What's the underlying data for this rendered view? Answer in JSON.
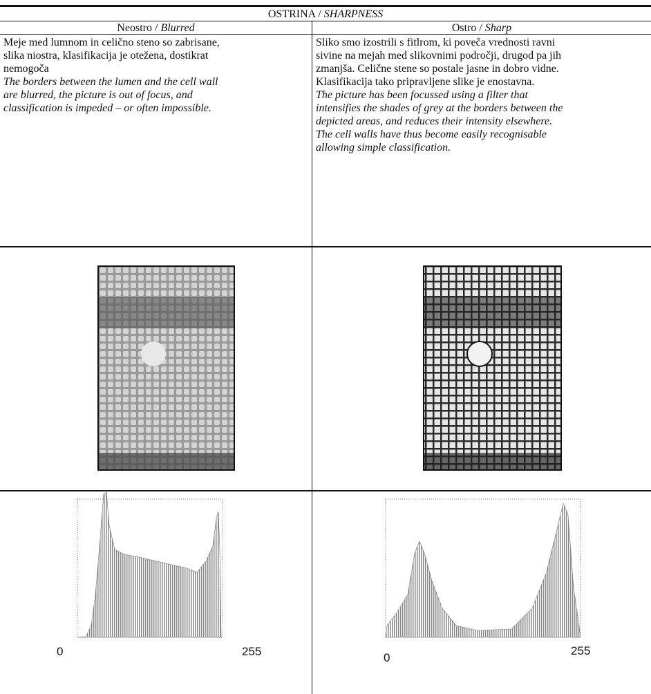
{
  "table": {
    "title": {
      "sl": "OSTRINA /",
      "en": "SHARPNESS"
    },
    "columns": [
      {
        "header": {
          "sl": "Neostro /",
          "en": "Blurred"
        },
        "text_sl": [
          "Meje med lumnom in celično steno so zabrisane,",
          "slika niostra, klasifikacija je otežena, dostikrat",
          "nemogoča"
        ],
        "text_en": [
          "The borders between the lumen and the cell wall",
          "are blurred, the picture is out of focus, and",
          "classification is impeded – or often impossible."
        ],
        "histogram": {
          "min_label": "0",
          "max_label": "255"
        }
      },
      {
        "header": {
          "sl": "Ostro /",
          "en": "Sharp"
        },
        "text_sl": [
          "Sliko smo izostrili s fitlrom, ki poveča vrednosti ravni",
          "sivine na mejah med slikovnimi področji, drugod pa jih",
          "zmanjša. Celične stene so postale jasne in dobro vidne.",
          "Klasifikacija tako pripravljene slike je enostavna."
        ],
        "text_en": [
          "The picture has been focussed using a filter that",
          "intensifies the shades of grey at the borders between the",
          "depicted areas, and reduces their intensity elsewhere.",
          "The cell walls have thus become easily recognisable",
          "allowing simple classification."
        ],
        "histogram": {
          "min_label": "0",
          "max_label": "255"
        }
      }
    ]
  }
}
